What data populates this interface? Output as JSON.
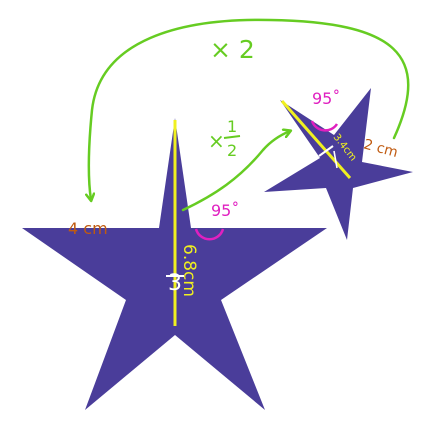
{
  "colors": {
    "star": "#4a3d9a",
    "arrow": "#66cc22",
    "angle_label": "#e020c0",
    "length_label": "#c05a10",
    "height_line": "#f0f020",
    "height_label": "#f0f020",
    "tick_mark": "#ffffff"
  },
  "scale_up": {
    "label": "× 2"
  },
  "scale_down": {
    "label_prefix": "×",
    "numerator": "1",
    "denominator": "2"
  },
  "large_star": {
    "side_label": "4 cm",
    "angle_label": "95˚",
    "height_label": "6.8cm",
    "tick_label": "3"
  },
  "small_star": {
    "side_label": "2 cm",
    "angle_label": "95˚",
    "height_label": "3.4cm"
  }
}
